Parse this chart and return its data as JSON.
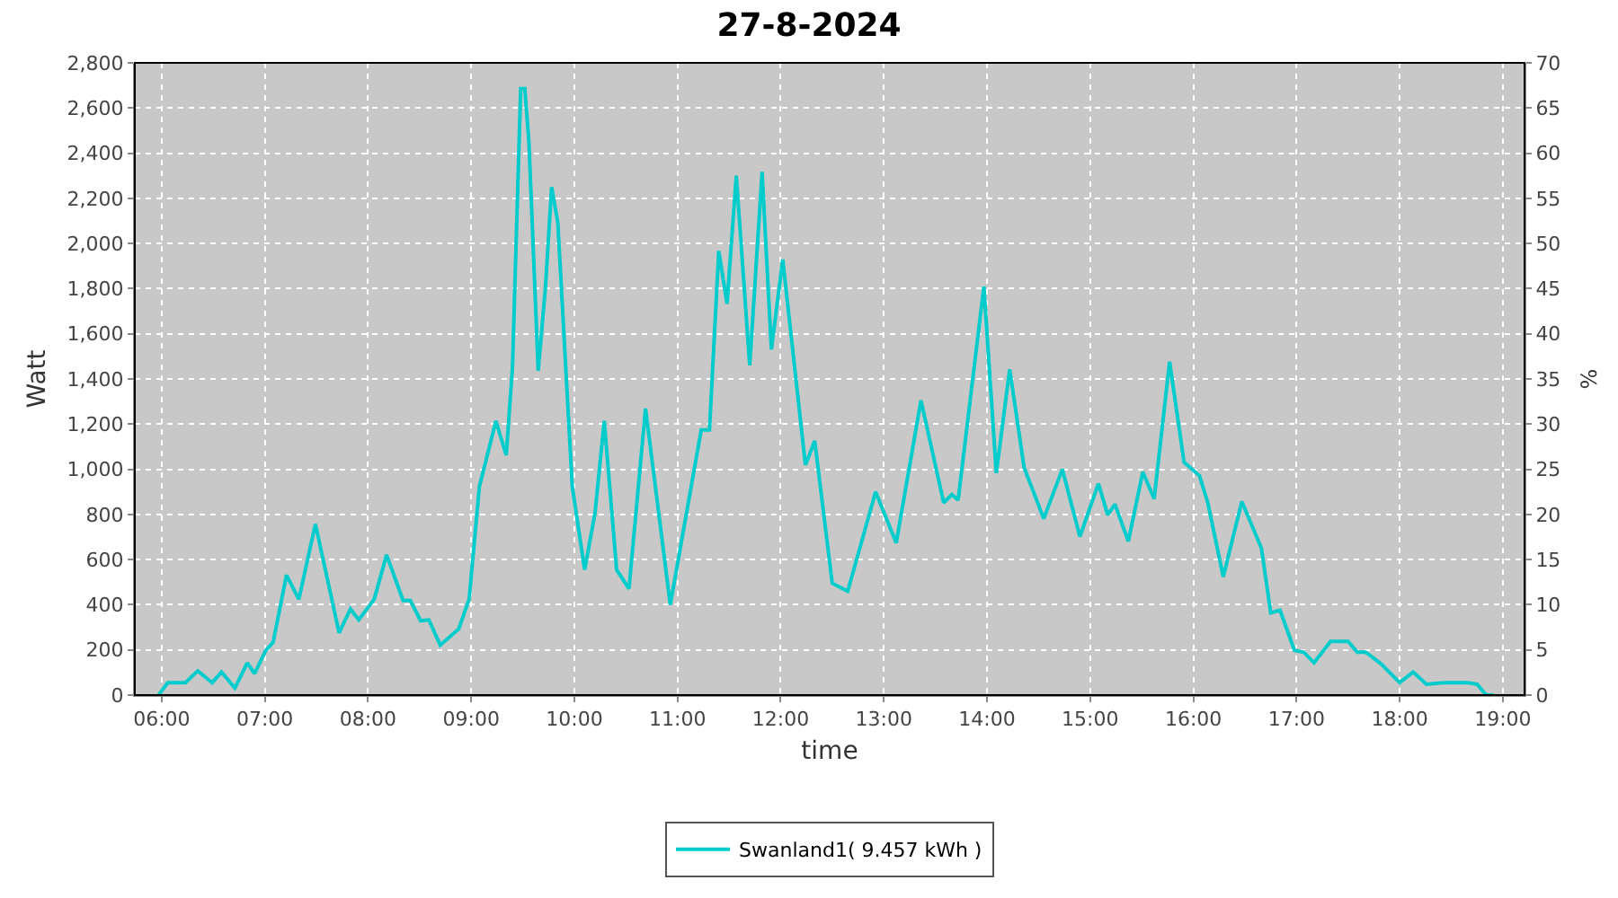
{
  "chart_data": {
    "type": "line",
    "title": "27-8-2024",
    "xlabel": "time",
    "ylabel": "Watt",
    "y2label": "%",
    "xlim": [
      5.74,
      19.21
    ],
    "xticks": [
      {
        "value": 6,
        "label": "06:00"
      },
      {
        "value": 7,
        "label": "07:00"
      },
      {
        "value": 8,
        "label": "08:00"
      },
      {
        "value": 9,
        "label": "09:00"
      },
      {
        "value": 10,
        "label": "10:00"
      },
      {
        "value": 11,
        "label": "11:00"
      },
      {
        "value": 12,
        "label": "12:00"
      },
      {
        "value": 13,
        "label": "13:00"
      },
      {
        "value": 14,
        "label": "14:00"
      },
      {
        "value": 15,
        "label": "15:00"
      },
      {
        "value": 16,
        "label": "16:00"
      },
      {
        "value": 17,
        "label": "17:00"
      },
      {
        "value": 18,
        "label": "18:00"
      },
      {
        "value": 19,
        "label": "19:00"
      }
    ],
    "ylim": [
      0,
      2800
    ],
    "yticks": [
      0,
      200,
      400,
      600,
      800,
      {
        "value": 1000,
        "label": "1,000"
      },
      {
        "value": 1200,
        "label": "1,200"
      },
      {
        "value": 1400,
        "label": "1,400"
      },
      {
        "value": 1600,
        "label": "1,600"
      },
      {
        "value": 1800,
        "label": "1,800"
      },
      {
        "value": 2000,
        "label": "2,000"
      },
      {
        "value": 2200,
        "label": "2,200"
      },
      {
        "value": 2400,
        "label": "2,400"
      },
      {
        "value": 2600,
        "label": "2,600"
      },
      {
        "value": 2800,
        "label": "2,800"
      }
    ],
    "y2lim": [
      0,
      70
    ],
    "y2ticks": [
      0,
      5,
      10,
      15,
      20,
      25,
      30,
      35,
      40,
      45,
      50,
      55,
      60,
      65,
      70
    ],
    "grid": true,
    "legend": "bottom",
    "marker": "none",
    "line_style": "solid",
    "series": [
      {
        "name": "Swanland1( 9.457 kWh )",
        "color": "#00cccc",
        "x": [
          5.97,
          6.06,
          6.23,
          6.35,
          6.49,
          6.58,
          6.71,
          6.83,
          6.9,
          7.01,
          7.08,
          7.21,
          7.33,
          7.49,
          7.72,
          7.83,
          7.91,
          8.06,
          8.18,
          8.34,
          8.41,
          8.51,
          8.59,
          8.7,
          8.88,
          8.98,
          9.08,
          9.24,
          9.34,
          9.4,
          9.48,
          9.52,
          9.56,
          9.65,
          9.72,
          9.78,
          9.84,
          9.98,
          10.1,
          10.2,
          10.29,
          10.41,
          10.53,
          10.69,
          10.93,
          11.23,
          11.31,
          11.4,
          11.48,
          11.57,
          11.7,
          11.82,
          11.91,
          12.02,
          12.24,
          12.33,
          12.5,
          12.65,
          12.92,
          13.12,
          13.36,
          13.58,
          13.66,
          13.72,
          13.97,
          14.09,
          14.22,
          14.36,
          14.55,
          14.73,
          14.9,
          15.08,
          15.17,
          15.24,
          15.37,
          15.51,
          15.62,
          15.77,
          15.91,
          16.06,
          16.14,
          16.29,
          16.47,
          16.66,
          16.75,
          16.84,
          16.98,
          17.07,
          17.17,
          17.33,
          17.5,
          17.59,
          17.67,
          17.82,
          18.0,
          18.13,
          18.26,
          18.43,
          18.66,
          18.75,
          18.84,
          18.91
        ],
        "values": [
          0,
          55,
          55,
          107,
          55,
          102,
          31,
          143,
          95,
          198,
          233,
          531,
          424,
          757,
          276,
          381,
          333,
          424,
          621,
          419,
          419,
          329,
          333,
          221,
          293,
          424,
          924,
          1214,
          1062,
          1448,
          2686,
          2686,
          2448,
          1436,
          1805,
          2250,
          2090,
          924,
          555,
          805,
          1214,
          555,
          471,
          1269,
          400,
          1174,
          1174,
          1967,
          1733,
          2300,
          1460,
          2317,
          1531,
          1929,
          1019,
          1126,
          495,
          460,
          900,
          674,
          1305,
          852,
          888,
          864,
          1809,
          983,
          1443,
          1007,
          781,
          1000,
          702,
          936,
          798,
          845,
          681,
          988,
          869,
          1476,
          1031,
          971,
          852,
          524,
          857,
          650,
          364,
          376,
          198,
          190,
          143,
          238,
          238,
          190,
          190,
          138,
          55,
          102,
          48,
          55,
          55,
          48,
          0,
          0
        ]
      }
    ]
  }
}
